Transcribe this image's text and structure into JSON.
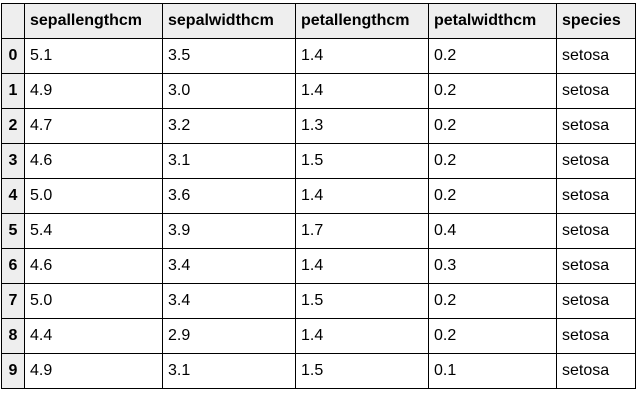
{
  "table": {
    "corner": "",
    "columns": [
      "sepallengthcm",
      "sepalwidthcm",
      "petallengthcm",
      "petalwidthcm",
      "species"
    ],
    "rows": [
      {
        "index": "0",
        "cells": [
          "5.1",
          "3.5",
          "1.4",
          "0.2",
          "setosa"
        ]
      },
      {
        "index": "1",
        "cells": [
          "4.9",
          "3.0",
          "1.4",
          "0.2",
          "setosa"
        ]
      },
      {
        "index": "2",
        "cells": [
          "4.7",
          "3.2",
          "1.3",
          "0.2",
          "setosa"
        ]
      },
      {
        "index": "3",
        "cells": [
          "4.6",
          "3.1",
          "1.5",
          "0.2",
          "setosa"
        ]
      },
      {
        "index": "4",
        "cells": [
          "5.0",
          "3.6",
          "1.4",
          "0.2",
          "setosa"
        ]
      },
      {
        "index": "5",
        "cells": [
          "5.4",
          "3.9",
          "1.7",
          "0.4",
          "setosa"
        ]
      },
      {
        "index": "6",
        "cells": [
          "4.6",
          "3.4",
          "1.4",
          "0.3",
          "setosa"
        ]
      },
      {
        "index": "7",
        "cells": [
          "5.0",
          "3.4",
          "1.5",
          "0.2",
          "setosa"
        ]
      },
      {
        "index": "8",
        "cells": [
          "4.4",
          "2.9",
          "1.4",
          "0.2",
          "setosa"
        ]
      },
      {
        "index": "9",
        "cells": [
          "4.9",
          "3.1",
          "1.5",
          "0.1",
          "setosa"
        ]
      }
    ]
  }
}
